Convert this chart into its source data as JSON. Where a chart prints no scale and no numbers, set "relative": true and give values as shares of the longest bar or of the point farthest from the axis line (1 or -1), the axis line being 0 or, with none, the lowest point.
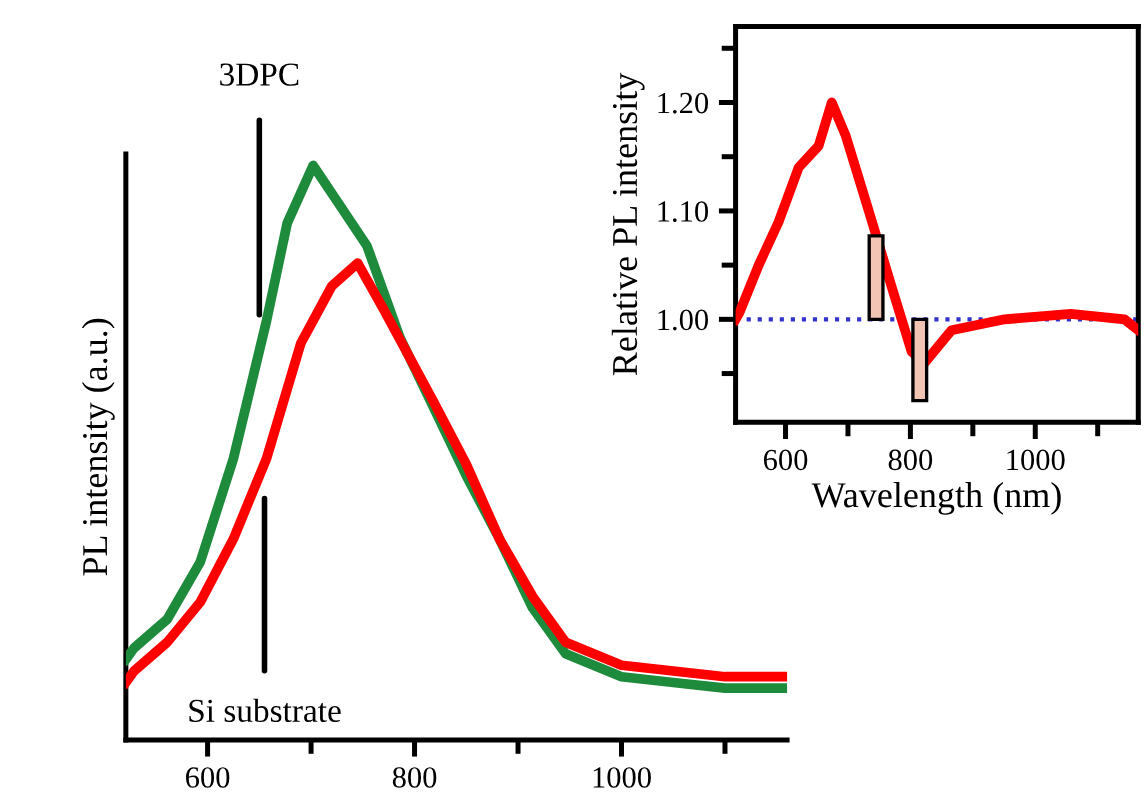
{
  "chart_data": [
    {
      "type": "line",
      "ylabel": "PL intensity (a.u.)",
      "relative": true,
      "xlim": [
        521,
        1160
      ],
      "xticks": [
        600,
        {
          "value": 700,
          "label": null
        },
        800,
        {
          "value": 900,
          "label": null
        },
        1000,
        {
          "value": 1100,
          "label": null
        }
      ],
      "series": [
        {
          "color": "#1e8a3c",
          "x": [
            521,
            529,
            561,
            593,
            625,
            657,
            677,
            702,
            728,
            754,
            786,
            818,
            850,
            882,
            914,
            946,
            1000,
            1050,
            1100,
            1160
          ],
          "values": [
            0.14,
            0.16,
            0.21,
            0.31,
            0.49,
            0.73,
            0.9,
            1.0,
            0.93,
            0.86,
            0.7,
            0.58,
            0.46,
            0.35,
            0.23,
            0.15,
            0.11,
            0.1,
            0.09,
            0.09
          ]
        },
        {
          "color": "#ff0000",
          "x": [
            521,
            529,
            561,
            593,
            625,
            657,
            690,
            720,
            745,
            770,
            818,
            850,
            882,
            914,
            946,
            1000,
            1050,
            1100,
            1160
          ],
          "values": [
            0.1,
            0.12,
            0.17,
            0.24,
            0.35,
            0.49,
            0.69,
            0.79,
            0.83,
            0.75,
            0.59,
            0.48,
            0.35,
            0.25,
            0.17,
            0.13,
            0.12,
            0.11,
            0.11
          ]
        }
      ],
      "annotations": [
        {
          "text": "3DPC",
          "x": 650,
          "y": 0.74
        },
        {
          "text": "Si substrate",
          "x": 655,
          "y": 0.42
        }
      ]
    },
    {
      "type": "line",
      "xlabel": "Wavelength (nm)",
      "ylabel": "Relative PL intensity",
      "xlim": [
        520,
        1165
      ],
      "ylim": [
        0.905,
        1.27
      ],
      "xticks": [
        600,
        {
          "value": 700,
          "label": null
        },
        800,
        {
          "value": 900,
          "label": null
        },
        1000,
        {
          "value": 1100,
          "label": null
        }
      ],
      "yticks": [
        {
          "value": 0.95,
          "label": null
        },
        {
          "value": 1.0,
          "label": "1.00"
        },
        {
          "value": 1.05,
          "label": null
        },
        {
          "value": 1.1,
          "label": "1.10"
        },
        {
          "value": 1.15,
          "label": null
        },
        {
          "value": 1.2,
          "label": "1.20"
        },
        {
          "value": 1.25,
          "label": null
        }
      ],
      "ref_lines": [
        {
          "axis": "y",
          "value": 1.0,
          "color": "#3333cc",
          "line_style": "dotted"
        }
      ],
      "series": [
        {
          "color": "#ff0000",
          "x": [
            520,
            526,
            557,
            589,
            621,
            653,
            674,
            696,
            728,
            749,
            770,
            802,
            823,
            866,
            951,
            1057,
            1143,
            1165
          ],
          "values": [
            1.0,
            1.006,
            1.05,
            1.09,
            1.14,
            1.16,
            1.2,
            1.17,
            1.11,
            1.07,
            1.03,
            0.97,
            0.96,
            0.99,
            1.0,
            1.005,
            1.0,
            0.99
          ]
        },
        {
          "type": "bar",
          "color": "#f2c4b4",
          "x": [
            745,
            815
          ],
          "base": [
            1.0,
            1.0
          ],
          "values": [
            0.077,
            -0.075
          ]
        }
      ]
    }
  ]
}
